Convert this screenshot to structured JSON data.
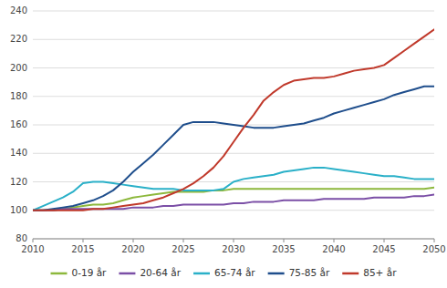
{
  "chart_data": {
    "type": "line",
    "x": [
      2010,
      2011,
      2012,
      2013,
      2014,
      2015,
      2016,
      2017,
      2018,
      2019,
      2020,
      2021,
      2022,
      2023,
      2024,
      2025,
      2026,
      2027,
      2028,
      2029,
      2030,
      2031,
      2032,
      2033,
      2034,
      2035,
      2036,
      2037,
      2038,
      2039,
      2040,
      2041,
      2042,
      2043,
      2044,
      2045,
      2046,
      2047,
      2048,
      2049,
      2050
    ],
    "series": [
      {
        "name": "0-19 år",
        "color": "#8db83c",
        "values": [
          100,
          100,
          100,
          101,
          102,
          103,
          104,
          104,
          105,
          107,
          109,
          110,
          111,
          112,
          113,
          113,
          113,
          113,
          114,
          114,
          115,
          115,
          115,
          115,
          115,
          115,
          115,
          115,
          115,
          115,
          115,
          115,
          115,
          115,
          115,
          115,
          115,
          115,
          115,
          115,
          116
        ]
      },
      {
        "name": "20-64 år",
        "color": "#7b4fa6",
        "values": [
          100,
          100,
          100,
          101,
          101,
          101,
          101,
          101,
          101,
          101,
          102,
          102,
          102,
          103,
          103,
          104,
          104,
          104,
          104,
          104,
          105,
          105,
          106,
          106,
          106,
          107,
          107,
          107,
          107,
          108,
          108,
          108,
          108,
          108,
          109,
          109,
          109,
          109,
          110,
          110,
          111
        ]
      },
      {
        "name": "65-74 år",
        "color": "#2ab0c8",
        "values": [
          100,
          103,
          106,
          109,
          113,
          119,
          120,
          120,
          119,
          118,
          117,
          116,
          115,
          115,
          115,
          114,
          114,
          114,
          114,
          115,
          120,
          122,
          123,
          124,
          125,
          127,
          128,
          129,
          130,
          130,
          129,
          128,
          127,
          126,
          125,
          124,
          124,
          123,
          122,
          122,
          122
        ]
      },
      {
        "name": "75-85 år",
        "color": "#1f4e8c",
        "values": [
          100,
          100,
          101,
          102,
          103,
          105,
          107,
          110,
          114,
          120,
          127,
          133,
          139,
          146,
          153,
          160,
          162,
          162,
          162,
          161,
          160,
          159,
          158,
          158,
          158,
          159,
          160,
          161,
          163,
          165,
          168,
          170,
          172,
          174,
          176,
          178,
          181,
          183,
          185,
          187,
          187
        ]
      },
      {
        "name": "85+ år",
        "color": "#c0392b",
        "values": [
          100,
          100,
          100,
          100,
          100,
          100,
          101,
          101,
          102,
          103,
          104,
          105,
          107,
          109,
          112,
          115,
          119,
          124,
          130,
          138,
          148,
          158,
          167,
          177,
          183,
          188,
          191,
          192,
          193,
          193,
          194,
          196,
          198,
          199,
          200,
          202,
          207,
          212,
          217,
          222,
          227
        ]
      }
    ],
    "xlim": [
      2010,
      2050
    ],
    "ylim": [
      80,
      240
    ],
    "xticks": [
      2010,
      2015,
      2020,
      2025,
      2030,
      2035,
      2040,
      2045,
      2050
    ],
    "yticks": [
      80,
      100,
      120,
      140,
      160,
      180,
      200,
      220,
      240
    ],
    "grid": true,
    "legend": "bottom"
  }
}
